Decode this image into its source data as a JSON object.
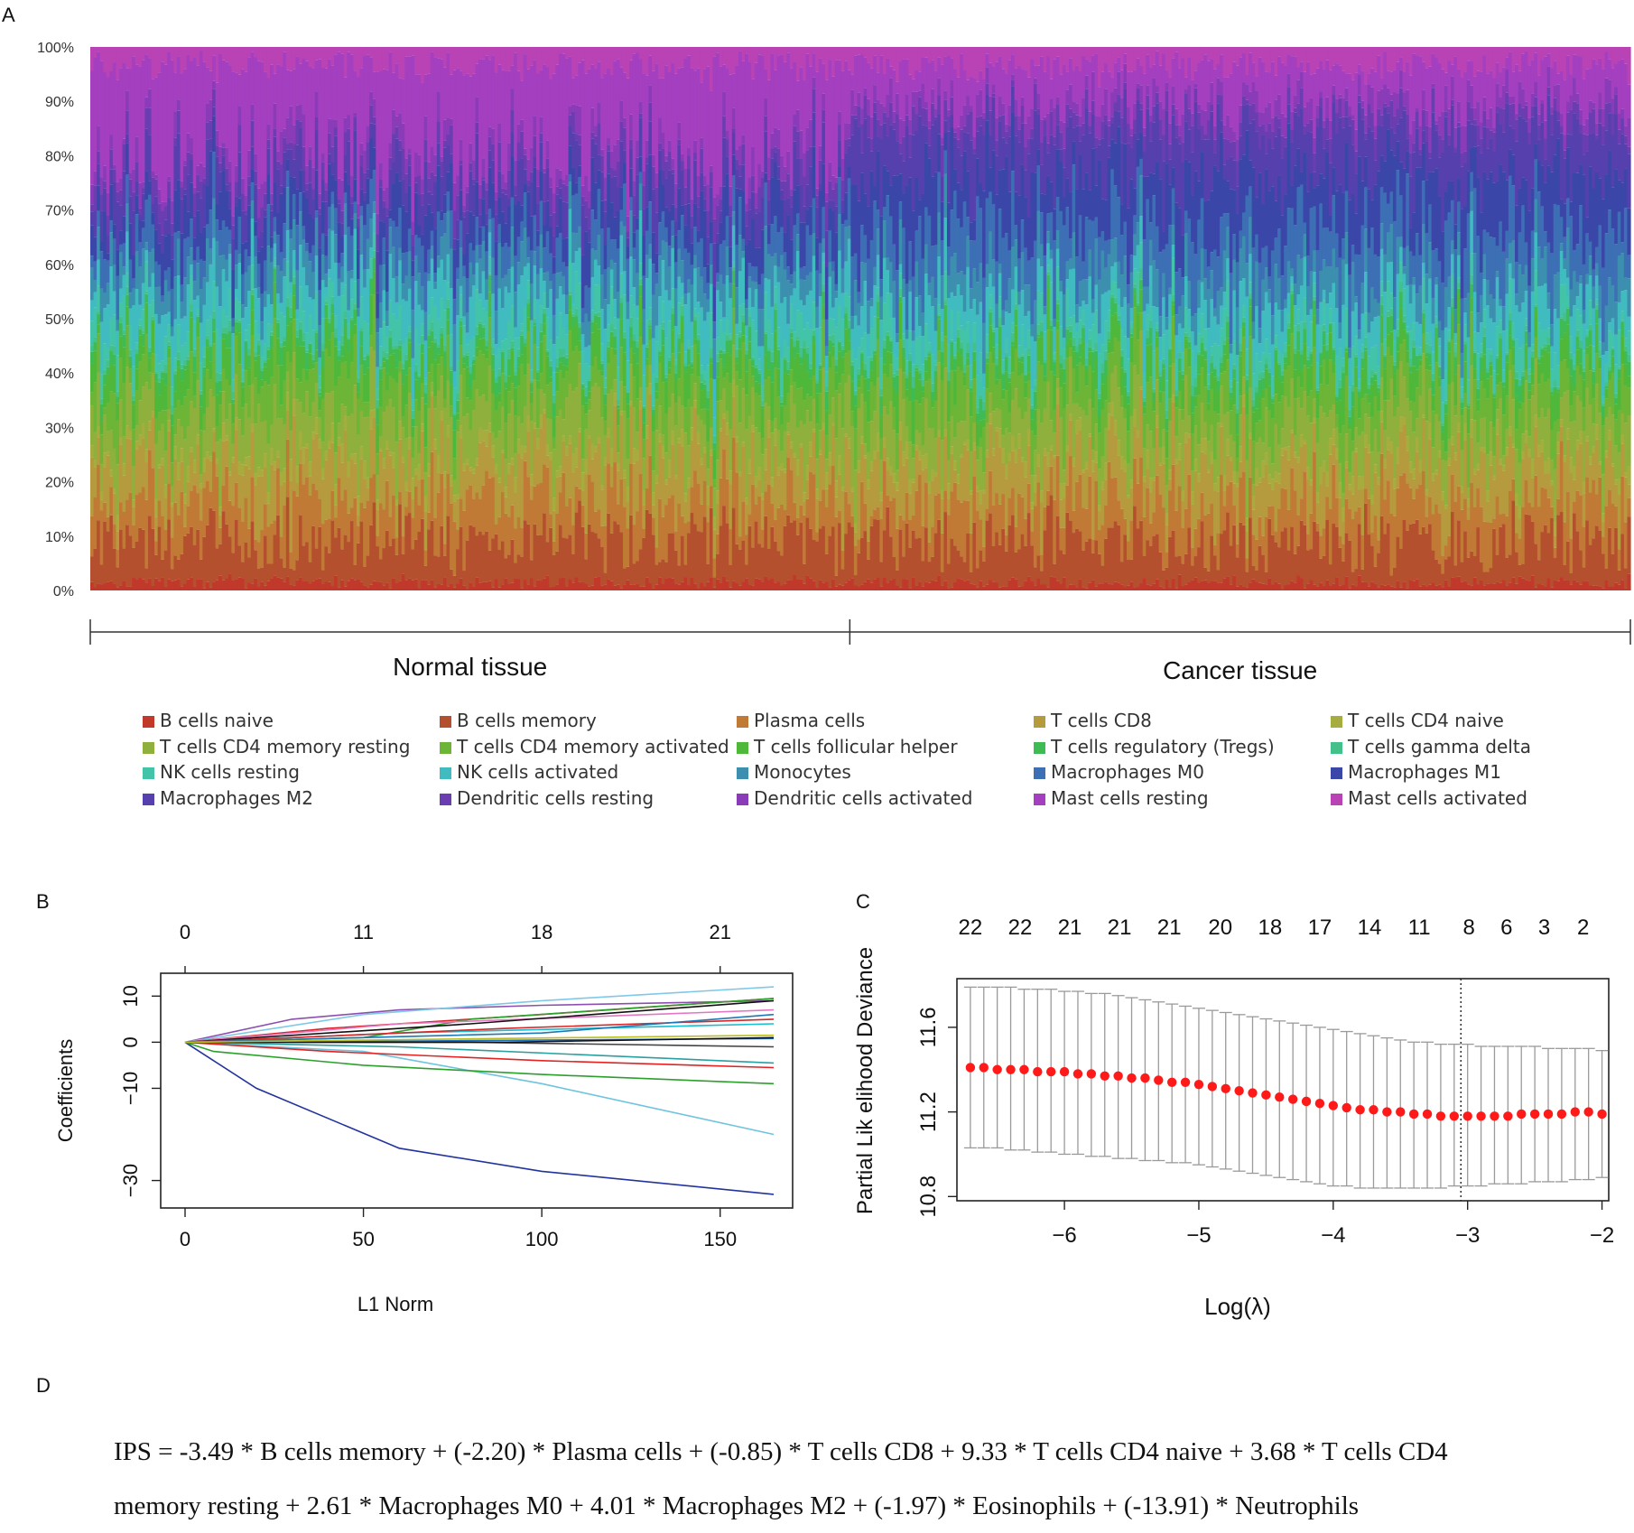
{
  "panels": {
    "a": "A",
    "b": "B",
    "c": "C",
    "d": "D"
  },
  "chart_data": [
    {
      "type": "bar",
      "subtype": "stacked-100-percent",
      "yticks": [
        "0%",
        "10%",
        "20%",
        "30%",
        "40%",
        "50%",
        "60%",
        "70%",
        "80%",
        "90%",
        "100%"
      ],
      "groups": [
        {
          "label": "Normal tissue",
          "share": 0.494
        },
        {
          "label": "Cancer tissue",
          "share": 0.506
        }
      ],
      "n_samples": 480,
      "series": [
        {
          "name": "B cells naive",
          "color": "#c0392b",
          "mean": 0.015
        },
        {
          "name": "B cells memory",
          "color": "#b5502e",
          "mean": 0.08
        },
        {
          "name": "Plasma cells",
          "color": "#c07a36",
          "mean": 0.075
        },
        {
          "name": "T cells CD8",
          "color": "#b69a3e",
          "mean": 0.075
        },
        {
          "name": "T cells CD4 naive",
          "color": "#a6ad3e",
          "mean": 0.02
        },
        {
          "name": "T cells CD4 memory resting",
          "color": "#8fb03c",
          "mean": 0.07
        },
        {
          "name": "T cells CD4 memory activated",
          "color": "#6cb536",
          "mean": 0.06
        },
        {
          "name": "T cells follicular helper",
          "color": "#4fb83a",
          "mean": 0.04
        },
        {
          "name": "T cells regulatory (Tregs)",
          "color": "#3fbb55",
          "mean": 0.02
        },
        {
          "name": "T cells gamma delta",
          "color": "#44c08a",
          "mean": 0.01
        },
        {
          "name": "NK cells resting",
          "color": "#43c4a8",
          "mean": 0.04
        },
        {
          "name": "NK cells activated",
          "color": "#40bcc0",
          "mean": 0.06
        },
        {
          "name": "Monocytes",
          "color": "#3c8fae",
          "mean": 0.05
        },
        {
          "name": "Macrophages M0",
          "color": "#3d6fb5",
          "mean": 0.05
        },
        {
          "name": "Macrophages M1",
          "color": "#3a47a8",
          "mean": 0.06
        },
        {
          "name": "Macrophages M2",
          "color": "#5540ae",
          "mean": 0.05
        },
        {
          "name": "Dendritic cells resting",
          "color": "#6a3db0",
          "mean": 0.03
        },
        {
          "name": "Dendritic cells activated",
          "color": "#8a3cb8",
          "mean": 0.03
        },
        {
          "name": "Mast cells resting",
          "color": "#a43fc0",
          "mean": 0.13
        },
        {
          "name": "Mast cells activated",
          "color": "#b943b5",
          "mean": 0.035
        }
      ]
    },
    {
      "type": "line",
      "xlabel": "L1 Norm",
      "ylabel": "Coefficients",
      "xlim": [
        0,
        165
      ],
      "ylim": [
        -34,
        13
      ],
      "xticks": [
        "0",
        "50",
        "100",
        "150"
      ],
      "xtick_values": [
        0,
        50,
        100,
        150
      ],
      "yticks": [
        "10",
        "0",
        "−10",
        "−30"
      ],
      "ytick_values": [
        10,
        0,
        -10,
        -30
      ],
      "top_ticks": [
        "0",
        "11",
        "18",
        "21"
      ],
      "top_tick_values": [
        0,
        50,
        100,
        150
      ],
      "series": [
        {
          "color": "#22339e",
          "points": [
            [
              0,
              0
            ],
            [
              20,
              -10
            ],
            [
              60,
              -23
            ],
            [
              100,
              -28
            ],
            [
              165,
              -33
            ]
          ]
        },
        {
          "color": "#6ec3de",
          "points": [
            [
              0,
              0
            ],
            [
              50,
              -2
            ],
            [
              100,
              -9
            ],
            [
              165,
              -20
            ]
          ]
        },
        {
          "color": "#2ca02c",
          "points": [
            [
              0,
              0
            ],
            [
              8,
              -2
            ],
            [
              50,
              -5
            ],
            [
              100,
              -7
            ],
            [
              165,
              -9
            ]
          ]
        },
        {
          "color": "#e32222",
          "points": [
            [
              0,
              0
            ],
            [
              40,
              -2
            ],
            [
              100,
              -4
            ],
            [
              165,
              -5.5
            ]
          ]
        },
        {
          "color": "#2aa0a0",
          "points": [
            [
              0,
              0
            ],
            [
              60,
              -1
            ],
            [
              165,
              -4.5
            ]
          ]
        },
        {
          "color": "#444444",
          "points": [
            [
              0,
              0
            ],
            [
              80,
              0
            ],
            [
              165,
              -1
            ]
          ]
        },
        {
          "color": "#1f6fbf",
          "points": [
            [
              0,
              0
            ],
            [
              70,
              0.3
            ],
            [
              165,
              0.8
            ]
          ]
        },
        {
          "color": "#111111",
          "points": [
            [
              0,
              0
            ],
            [
              90,
              0
            ],
            [
              165,
              1
            ]
          ]
        },
        {
          "color": "#8c4fb0",
          "points": [
            [
              0,
              0
            ],
            [
              30,
              5
            ],
            [
              60,
              7
            ],
            [
              100,
              8
            ],
            [
              165,
              9
            ]
          ]
        },
        {
          "color": "#7fc8e8",
          "points": [
            [
              0,
              0
            ],
            [
              50,
              6
            ],
            [
              100,
              9
            ],
            [
              165,
              12
            ]
          ]
        },
        {
          "color": "#d62728",
          "points": [
            [
              0,
              0
            ],
            [
              40,
              3
            ],
            [
              100,
              6
            ],
            [
              165,
              9.5
            ]
          ]
        },
        {
          "color": "#2ca02c",
          "points": [
            [
              0,
              0
            ],
            [
              50,
              1
            ],
            [
              80,
              5
            ],
            [
              165,
              9.5
            ]
          ]
        },
        {
          "color": "#e377c2",
          "points": [
            [
              0,
              0
            ],
            [
              60,
              4
            ],
            [
              165,
              7
            ]
          ]
        },
        {
          "color": "#17becf",
          "points": [
            [
              0,
              0
            ],
            [
              60,
              2
            ],
            [
              165,
              4
            ]
          ]
        },
        {
          "color": "#111111",
          "points": [
            [
              0,
              0
            ],
            [
              80,
              4
            ],
            [
              165,
              9
            ]
          ]
        },
        {
          "color": "#d62728",
          "points": [
            [
              0,
              0
            ],
            [
              90,
              3
            ],
            [
              165,
              5
            ]
          ]
        },
        {
          "color": "#1f77b4",
          "points": [
            [
              0,
              0
            ],
            [
              100,
              2
            ],
            [
              165,
              6
            ]
          ]
        },
        {
          "color": "#bcbd22",
          "points": [
            [
              0,
              0
            ],
            [
              110,
              1
            ],
            [
              165,
              1.5
            ]
          ]
        }
      ]
    },
    {
      "type": "scatter",
      "subtype": "cross-validation-error-bars",
      "xlabel": "Log(λ)",
      "ylabel": "Partial Lik elihood Deviance",
      "xlim": [
        -6.8,
        -1.95
      ],
      "ylim": [
        10.78,
        11.83
      ],
      "xticks": [
        "−6",
        "−5",
        "−4",
        "−3",
        "−2"
      ],
      "xtick_values": [
        -6,
        -5,
        -4,
        -3,
        -2
      ],
      "yticks": [
        "10.8",
        "11.2",
        "11.6"
      ],
      "ytick_values": [
        10.8,
        11.2,
        11.6
      ],
      "top_ticks": [
        "22",
        "22",
        "21",
        "21",
        "21",
        "20",
        "18",
        "17",
        "14",
        "11",
        "8",
        "6",
        "3",
        "2"
      ],
      "top_tick_values": [
        -6.7,
        -6.33,
        -5.96,
        -5.59,
        -5.22,
        -4.84,
        -4.47,
        -4.1,
        -3.73,
        -3.36,
        -2.99,
        -2.71,
        -2.43,
        -2.14
      ],
      "lambda_min_line": -3.05,
      "point_color": "#ff1a1a",
      "points": [
        {
          "x": -6.7,
          "y": 11.41
        },
        {
          "x": -6.6,
          "y": 11.41
        },
        {
          "x": -6.5,
          "y": 11.4
        },
        {
          "x": -6.4,
          "y": 11.4
        },
        {
          "x": -6.3,
          "y": 11.4
        },
        {
          "x": -6.2,
          "y": 11.39
        },
        {
          "x": -6.1,
          "y": 11.39
        },
        {
          "x": -6.0,
          "y": 11.39
        },
        {
          "x": -5.9,
          "y": 11.38
        },
        {
          "x": -5.8,
          "y": 11.38
        },
        {
          "x": -5.7,
          "y": 11.37
        },
        {
          "x": -5.6,
          "y": 11.37
        },
        {
          "x": -5.5,
          "y": 11.36
        },
        {
          "x": -5.4,
          "y": 11.36
        },
        {
          "x": -5.3,
          "y": 11.35
        },
        {
          "x": -5.2,
          "y": 11.34
        },
        {
          "x": -5.1,
          "y": 11.34
        },
        {
          "x": -5.0,
          "y": 11.33
        },
        {
          "x": -4.9,
          "y": 11.32
        },
        {
          "x": -4.8,
          "y": 11.31
        },
        {
          "x": -4.7,
          "y": 11.3
        },
        {
          "x": -4.6,
          "y": 11.29
        },
        {
          "x": -4.5,
          "y": 11.28
        },
        {
          "x": -4.4,
          "y": 11.27
        },
        {
          "x": -4.3,
          "y": 11.26
        },
        {
          "x": -4.2,
          "y": 11.25
        },
        {
          "x": -4.1,
          "y": 11.24
        },
        {
          "x": -4.0,
          "y": 11.23
        },
        {
          "x": -3.9,
          "y": 11.22
        },
        {
          "x": -3.8,
          "y": 11.21
        },
        {
          "x": -3.7,
          "y": 11.21
        },
        {
          "x": -3.6,
          "y": 11.2
        },
        {
          "x": -3.5,
          "y": 11.2
        },
        {
          "x": -3.4,
          "y": 11.19
        },
        {
          "x": -3.3,
          "y": 11.19
        },
        {
          "x": -3.2,
          "y": 11.18
        },
        {
          "x": -3.1,
          "y": 11.18
        },
        {
          "x": -3.0,
          "y": 11.18
        },
        {
          "x": -2.9,
          "y": 11.18
        },
        {
          "x": -2.8,
          "y": 11.18
        },
        {
          "x": -2.7,
          "y": 11.18
        },
        {
          "x": -2.6,
          "y": 11.19
        },
        {
          "x": -2.5,
          "y": 11.19
        },
        {
          "x": -2.4,
          "y": 11.19
        },
        {
          "x": -2.3,
          "y": 11.19
        },
        {
          "x": -2.2,
          "y": 11.2
        },
        {
          "x": -2.1,
          "y": 11.2
        },
        {
          "x": -2.0,
          "y": 11.19
        }
      ],
      "upper": [
        11.79,
        11.79,
        11.79,
        11.79,
        11.78,
        11.78,
        11.78,
        11.77,
        11.77,
        11.76,
        11.76,
        11.75,
        11.74,
        11.73,
        11.72,
        11.71,
        11.7,
        11.69,
        11.68,
        11.67,
        11.66,
        11.65,
        11.64,
        11.63,
        11.62,
        11.61,
        11.6,
        11.59,
        11.58,
        11.57,
        11.56,
        11.55,
        11.54,
        11.53,
        11.53,
        11.52,
        11.52,
        11.52,
        11.51,
        11.51,
        11.51,
        11.51,
        11.51,
        11.5,
        11.5,
        11.5,
        11.5,
        11.49
      ],
      "lower": [
        11.03,
        11.03,
        11.03,
        11.02,
        11.02,
        11.01,
        11.01,
        11.0,
        11.0,
        10.99,
        10.99,
        10.98,
        10.98,
        10.97,
        10.97,
        10.96,
        10.96,
        10.95,
        10.94,
        10.93,
        10.92,
        10.91,
        10.9,
        10.89,
        10.88,
        10.87,
        10.86,
        10.85,
        10.85,
        10.84,
        10.84,
        10.84,
        10.84,
        10.84,
        10.84,
        10.84,
        10.85,
        10.85,
        10.85,
        10.86,
        10.86,
        10.86,
        10.87,
        10.87,
        10.87,
        10.88,
        10.88,
        10.89
      ]
    }
  ],
  "formula": {
    "line1": "IPS = -3.49 * B cells memory + (-2.20) * Plasma cells + (-0.85) * T cells CD8 + 9.33 * T cells CD4 naive + 3.68 * T cells CD4",
    "line2": "memory resting + 2.61 * Macrophages M0 + 4.01 * Macrophages M2 + (-1.97) * Eosinophils + (-13.91) * Neutrophils"
  }
}
